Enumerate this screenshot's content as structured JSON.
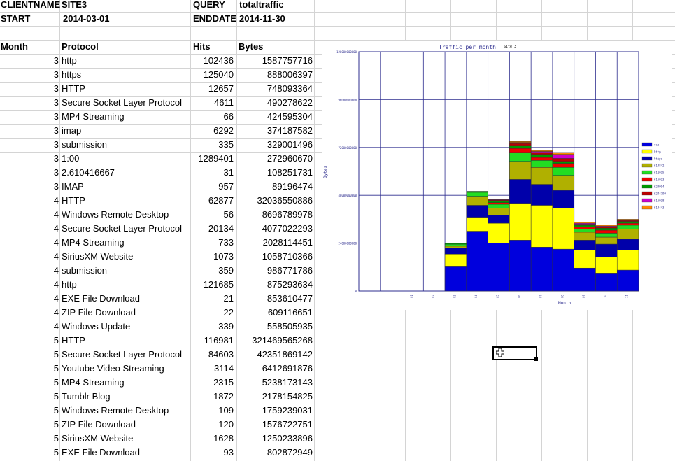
{
  "header": {
    "clientname_label": "CLIENTNAME",
    "clientname_value": "SITE3",
    "query_label": "QUERY",
    "query_value": "totaltraffic",
    "start_label": "START",
    "start_value": "2014-03-01",
    "enddate_label": "ENDDATE",
    "enddate_value": "2014-11-30"
  },
  "table": {
    "columns": [
      "Month",
      "Protocol",
      "Hits",
      "Bytes"
    ],
    "rows": [
      [
        "3",
        "http",
        "102436",
        "1587757716"
      ],
      [
        "3",
        "https",
        "125040",
        "888006397"
      ],
      [
        "3",
        "HTTP",
        "12657",
        "748093364"
      ],
      [
        "3",
        "Secure Socket Layer Protocol",
        "4611",
        "490278622"
      ],
      [
        "3",
        "MP4 Streaming",
        "66",
        "424595304"
      ],
      [
        "3",
        "imap",
        "6292",
        "374187582"
      ],
      [
        "3",
        "submission",
        "335",
        "329001496"
      ],
      [
        "3",
        "1:00",
        "1289401",
        "272960670"
      ],
      [
        "3",
        "2.610416667",
        "31",
        "108251731"
      ],
      [
        "3",
        "IMAP",
        "957",
        "89196474"
      ],
      [
        "4",
        "HTTP",
        "62877",
        "32036550886"
      ],
      [
        "4",
        "Windows Remote Desktop",
        "56",
        "8696789978"
      ],
      [
        "4",
        "Secure Socket Layer Protocol",
        "20134",
        "4077022293"
      ],
      [
        "4",
        "MP4 Streaming",
        "733",
        "2028114451"
      ],
      [
        "4",
        "SiriusXM Website",
        "1073",
        "1058710366"
      ],
      [
        "4",
        "submission",
        "359",
        "986771786"
      ],
      [
        "4",
        "http",
        "121685",
        "875293634"
      ],
      [
        "4",
        "EXE File Download",
        "21",
        "853610477"
      ],
      [
        "4",
        "ZIP File Download",
        "22",
        "609116651"
      ],
      [
        "4",
        "Windows Update",
        "339",
        "558505935"
      ],
      [
        "5",
        "HTTP",
        "116981",
        "321469565268"
      ],
      [
        "5",
        "Secure Socket Layer Protocol",
        "84603",
        "42351869142"
      ],
      [
        "5",
        "Youtube Video Streaming",
        "3114",
        "6412691876"
      ],
      [
        "5",
        "MP4 Streaming",
        "2315",
        "5238173143"
      ],
      [
        "5",
        "Tumblr Blog",
        "1872",
        "2178154825"
      ],
      [
        "5",
        "Windows Remote Desktop",
        "109",
        "1759239031"
      ],
      [
        "5",
        "ZIP File Download",
        "120",
        "1576722751"
      ],
      [
        "5",
        "SiriusXM Website",
        "1628",
        "1250233896"
      ],
      [
        "5",
        "EXE File Download",
        "93",
        "802872949"
      ]
    ]
  },
  "colors": {
    "chart_frame": "#2e2e8f",
    "grid_line": "#d4d4d4"
  },
  "chart_data": {
    "type": "bar",
    "stacked": true,
    "title": "Traffic per month",
    "subtitle": "Site 3",
    "xlabel": "Month",
    "ylabel": "Bytes",
    "categories": [
      "01",
      "02",
      "03",
      "04",
      "05",
      "06",
      "07",
      "08",
      "09",
      "10",
      "11"
    ],
    "y_ticks": [
      "0",
      "24000000000",
      "48000000000",
      "72000000000",
      "96000000000",
      "120000000000"
    ],
    "ylim": [
      0,
      120000000000
    ],
    "grid": true,
    "legend_position": "right",
    "series": [
      {
        "name": "ssh",
        "color": "#0000dd",
        "values": [
          0,
          0,
          12500000000,
          30000000000,
          24000000000,
          25500000000,
          22000000000,
          21000000000,
          11500000000,
          9000000000,
          10500000000
        ]
      },
      {
        "name": "http",
        "color": "#ffff00",
        "values": [
          0,
          0,
          6000000000,
          7000000000,
          10000000000,
          18500000000,
          21000000000,
          20500000000,
          9000000000,
          8000000000,
          10000000000
        ]
      },
      {
        "name": "https",
        "color": "#0000aa",
        "values": [
          0,
          0,
          3000000000,
          6000000000,
          4000000000,
          12000000000,
          10500000000,
          9000000000,
          5000000000,
          6500000000,
          5500000000
        ]
      },
      {
        "name": "619842",
        "color": "#b0b000",
        "values": [
          0,
          0,
          1000000000,
          4500000000,
          3500000000,
          9000000000,
          8500000000,
          7500000000,
          4000000000,
          3500000000,
          5000000000
        ]
      },
      {
        "name": "611935",
        "color": "#22dd22",
        "values": [
          0,
          0,
          1000000000,
          2000000000,
          2000000000,
          4500000000,
          3500000000,
          4000000000,
          1500000000,
          2000000000,
          2000000000
        ]
      },
      {
        "name": "615933",
        "color": "#ee0000",
        "values": [
          0,
          0,
          0,
          0,
          800000000,
          2000000000,
          1500000000,
          2000000000,
          1000000000,
          1500000000,
          1000000000
        ]
      },
      {
        "name": "629994",
        "color": "#009900",
        "values": [
          0,
          0,
          500000000,
          500000000,
          700000000,
          1500000000,
          1500000000,
          1000000000,
          1000000000,
          1000000000,
          900000000
        ]
      },
      {
        "name": "6244799",
        "color": "#bb0000",
        "values": [
          0,
          0,
          0,
          0,
          500000000,
          1000000000,
          1000000000,
          1500000000,
          500000000,
          500000000,
          500000000
        ]
      },
      {
        "name": "615938",
        "color": "#cc00cc",
        "values": [
          0,
          0,
          0,
          0,
          300000000,
          500000000,
          500000000,
          2000000000,
          500000000,
          500000000,
          300000000
        ]
      },
      {
        "name": "619443",
        "color": "#ff8800",
        "values": [
          0,
          0,
          0,
          0,
          200000000,
          500000000,
          500000000,
          1000000000,
          500000000,
          500000000,
          300000000
        ]
      }
    ]
  }
}
